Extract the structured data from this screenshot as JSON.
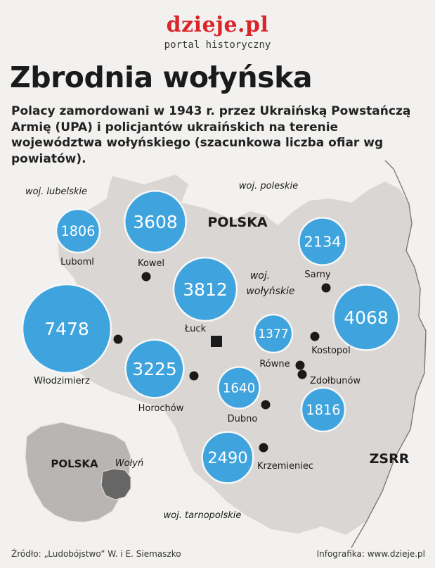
{
  "header": {
    "logo": "dzieje.pl",
    "logo_subtitle": "portal historyczny",
    "title": "Zbrodnia wołyńska",
    "subtitle": "Polacy zamordowani w 1943 r. przez Ukraińską Powstańczą Armię (UPA) i policjantów ukraińskich na terenie województwa wołyńskiego (szacunkowa liczba ofiar wg powiatów)."
  },
  "map_labels": {
    "lubelskie": "woj. lubelskie",
    "poleskie": "woj. poleskie",
    "polska_top": "POLSKA",
    "wolynskie_line1": "woj.",
    "wolynskie_line2": "wołyńskie",
    "zsrr": "ZSRR",
    "tarnopolskie": "woj. tarnopolskie",
    "inset_polska": "POLSKA",
    "inset_wolyn": "Wołyń"
  },
  "colors": {
    "bubble": "#3fa4de",
    "region": "#d9d6d3",
    "background": "#f2f1ef",
    "inset": "#b8b5b2",
    "inset_highlight": "#666666",
    "logo": "#d9262b"
  },
  "counties": [
    {
      "name": "Luboml",
      "victims": 1806
    },
    {
      "name": "Kowel",
      "victims": 3608
    },
    {
      "name": "Łuck",
      "victims": 3812
    },
    {
      "name": "Sarny",
      "victims": 2134
    },
    {
      "name": "Włodzimierz",
      "victims": 7478
    },
    {
      "name": "Horochów",
      "victims": 3225
    },
    {
      "name": "Równe",
      "victims": 1377
    },
    {
      "name": "Kostopol",
      "victims": 4068
    },
    {
      "name": "Dubno",
      "victims": 1640
    },
    {
      "name": "Zdołbunów",
      "victims": 1816
    },
    {
      "name": "Krzemieniec",
      "victims": 2490
    }
  ],
  "footer": {
    "source": "Źródło: „Ludobójstwo” W. i E. Siemaszko",
    "credit": "Infografika: www.dzieje.pl"
  }
}
